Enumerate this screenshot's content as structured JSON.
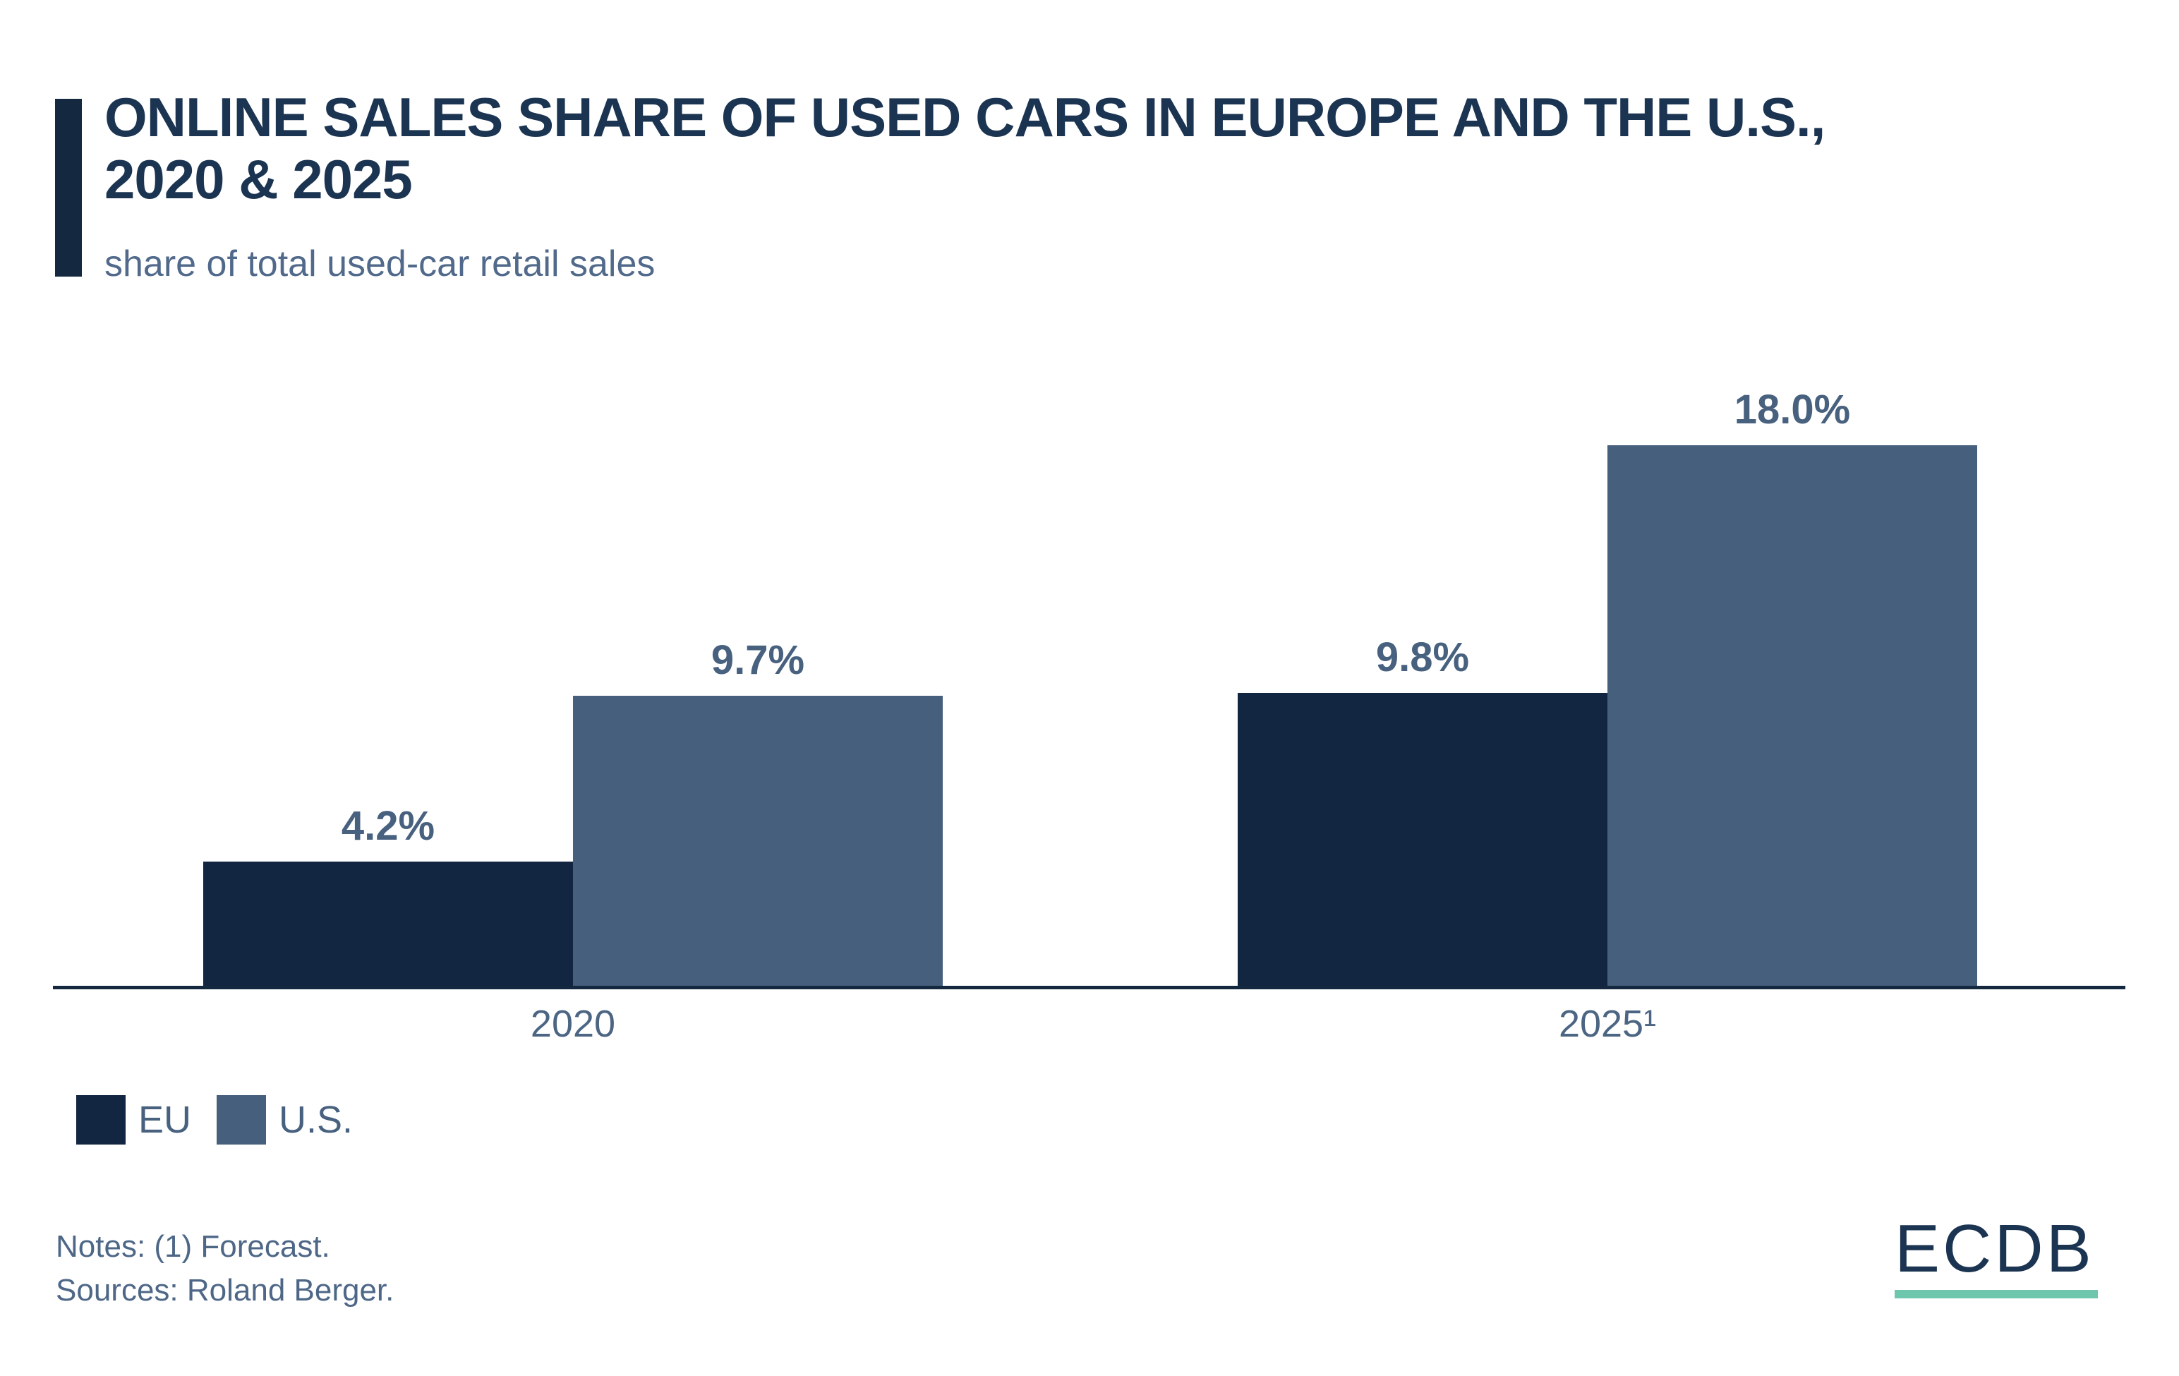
{
  "header": {
    "title_lines": [
      "ONLINE SALES SHARE OF USED CARS IN EUROPE AND THE U.S.,",
      "2020 & 2025"
    ],
    "subtitle": "share of total used-car retail sales"
  },
  "chart_data": {
    "type": "bar",
    "title": "ONLINE SALES SHARE OF USED CARS IN EUROPE AND THE U.S., 2020 & 2025",
    "subtitle": "share of total used-car retail sales",
    "categories": [
      "2020",
      "2025¹"
    ],
    "series": [
      {
        "name": "EU",
        "color": "#122642",
        "values": [
          4.2,
          9.8
        ],
        "value_labels": [
          "4.2%",
          "9.8%"
        ]
      },
      {
        "name": "U.S.",
        "color": "#465F7D",
        "values": [
          9.7,
          18.0
        ],
        "value_labels": [
          "9.7%",
          "18.0%"
        ]
      }
    ],
    "ylabel": "share of total used-car retail sales (%)",
    "ylim": [
      0,
      20
    ],
    "grid": false,
    "legend_position": "bottom-left",
    "value_label_color": "#47617F",
    "tick_label_color": "#4C6583"
  },
  "footer": {
    "notes": "Notes: (1) Forecast.",
    "sources": "Sources: Roland Berger.",
    "logo_text": "ECDB"
  },
  "colors": {
    "accent_bar": "#14293F",
    "title_navy": "#1B3451",
    "subtitle_slate": "#51698A",
    "axis_line": "#14293F",
    "eu_series": "#122642",
    "us_series": "#465F7D",
    "logo_navy": "#1B3451",
    "logo_underline_teal": "#6EC7AD",
    "background": "#FFFFFF"
  }
}
